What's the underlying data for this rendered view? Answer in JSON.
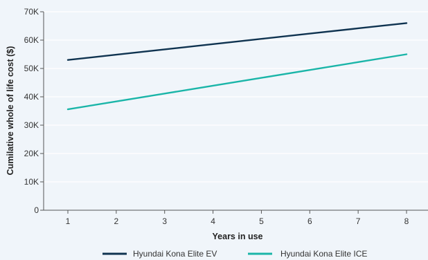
{
  "chart_data": {
    "type": "line",
    "title": "",
    "xlabel": "Years in use",
    "ylabel": "Cumilative whole of life cost ($)",
    "x": [
      1,
      2,
      3,
      4,
      5,
      6,
      7,
      8
    ],
    "x_tick_labels": [
      "1",
      "2",
      "3",
      "4",
      "5",
      "6",
      "7",
      "8"
    ],
    "ylim": [
      0,
      70000
    ],
    "y_ticks": [
      0,
      10000,
      20000,
      30000,
      40000,
      50000,
      60000,
      70000
    ],
    "y_tick_labels": [
      "0",
      "10K",
      "20K",
      "30K",
      "40K",
      "50K",
      "60K",
      "70K"
    ],
    "grid": "horizontal",
    "legend_position": "bottom",
    "background_color": "#f0f5fa",
    "series": [
      {
        "name": "Hyundai Kona Elite EV",
        "color": "#0f3350",
        "values": [
          53000,
          54860,
          56720,
          58570,
          60430,
          62290,
          64150,
          66000
        ]
      },
      {
        "name": "Hyundai Kona Elite ICE",
        "color": "#1ab5a8",
        "values": [
          35600,
          38370,
          41140,
          43910,
          46690,
          49460,
          52230,
          55000
        ]
      }
    ]
  }
}
